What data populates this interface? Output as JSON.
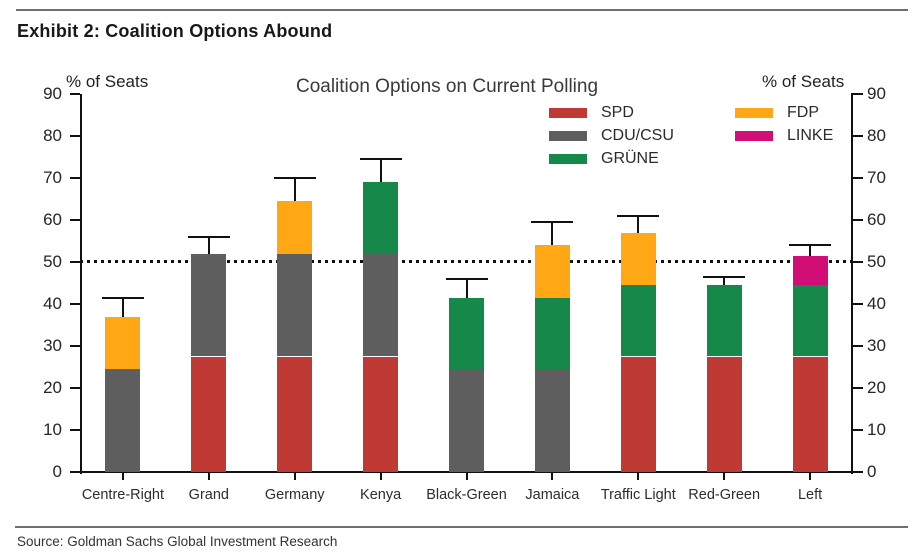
{
  "page": {
    "exhibit_title": "Exhibit 2: Coalition Options Abound",
    "source": "Source: Goldman Sachs Global Investment Research"
  },
  "chart_data": {
    "type": "bar",
    "stacked": true,
    "title": "Coalition Options on Current Polling",
    "left_axis_label": "% of Seats",
    "right_axis_label": "% of Seats",
    "ylim": [
      0,
      90
    ],
    "ytick_step": 10,
    "grid": false,
    "reference_line": {
      "value": 50,
      "style": "dotted",
      "color": "#111111"
    },
    "error_bars": "upper whisker with cap",
    "legend_position": "top-right, two columns",
    "parties": [
      {
        "name": "SPD",
        "color": "#bf3a34"
      },
      {
        "name": "CDU/CSU",
        "color": "#5e5e5e"
      },
      {
        "name": "GRÜNE",
        "color": "#15884a"
      },
      {
        "name": "FDP",
        "color": "#ffa714"
      },
      {
        "name": "LINKE",
        "color": "#d00e76"
      }
    ],
    "legend_columns": [
      [
        "SPD",
        "CDU/CSU",
        "GRÜNE"
      ],
      [
        "FDP",
        "LINKE"
      ]
    ],
    "categories": [
      "Centre-Right",
      "Grand",
      "Germany",
      "Kenya",
      "Black-Green",
      "Jamaica",
      "Traffic Light",
      "Red-Green",
      "Left"
    ],
    "bars": [
      {
        "label": "Centre-Right",
        "segments": [
          {
            "party": "CDU/CSU",
            "value": 24.5
          },
          {
            "party": "FDP",
            "value": 12.5
          }
        ],
        "total": 37,
        "error_high": 41.5
      },
      {
        "label": "Grand",
        "segments": [
          {
            "party": "SPD",
            "value": 27.5
          },
          {
            "party": "CDU/CSU",
            "value": 24.5
          }
        ],
        "total": 52,
        "error_high": 56
      },
      {
        "label": "Germany",
        "segments": [
          {
            "party": "SPD",
            "value": 27.5
          },
          {
            "party": "CDU/CSU",
            "value": 24.5
          },
          {
            "party": "FDP",
            "value": 12.5
          }
        ],
        "total": 64.5,
        "error_high": 70
      },
      {
        "label": "Kenya",
        "segments": [
          {
            "party": "SPD",
            "value": 27.5
          },
          {
            "party": "CDU/CSU",
            "value": 24.5
          },
          {
            "party": "GRÜNE",
            "value": 17
          }
        ],
        "total": 69,
        "error_high": 74.5
      },
      {
        "label": "Black-Green",
        "segments": [
          {
            "party": "CDU/CSU",
            "value": 24.5
          },
          {
            "party": "GRÜNE",
            "value": 17
          }
        ],
        "total": 41.5,
        "error_high": 46
      },
      {
        "label": "Jamaica",
        "segments": [
          {
            "party": "CDU/CSU",
            "value": 24.5
          },
          {
            "party": "GRÜNE",
            "value": 17
          },
          {
            "party": "FDP",
            "value": 12.5
          }
        ],
        "total": 54,
        "error_high": 59.5
      },
      {
        "label": "Traffic Light",
        "segments": [
          {
            "party": "SPD",
            "value": 27.5
          },
          {
            "party": "GRÜNE",
            "value": 17
          },
          {
            "party": "FDP",
            "value": 12.5
          }
        ],
        "total": 57,
        "error_high": 61
      },
      {
        "label": "Red-Green",
        "segments": [
          {
            "party": "SPD",
            "value": 27.5
          },
          {
            "party": "GRÜNE",
            "value": 17
          }
        ],
        "total": 44.5,
        "error_high": 46.5
      },
      {
        "label": "Left",
        "segments": [
          {
            "party": "SPD",
            "value": 27.5
          },
          {
            "party": "GRÜNE",
            "value": 17
          },
          {
            "party": "LINKE",
            "value": 7
          }
        ],
        "total": 51.5,
        "error_high": 54
      }
    ]
  }
}
